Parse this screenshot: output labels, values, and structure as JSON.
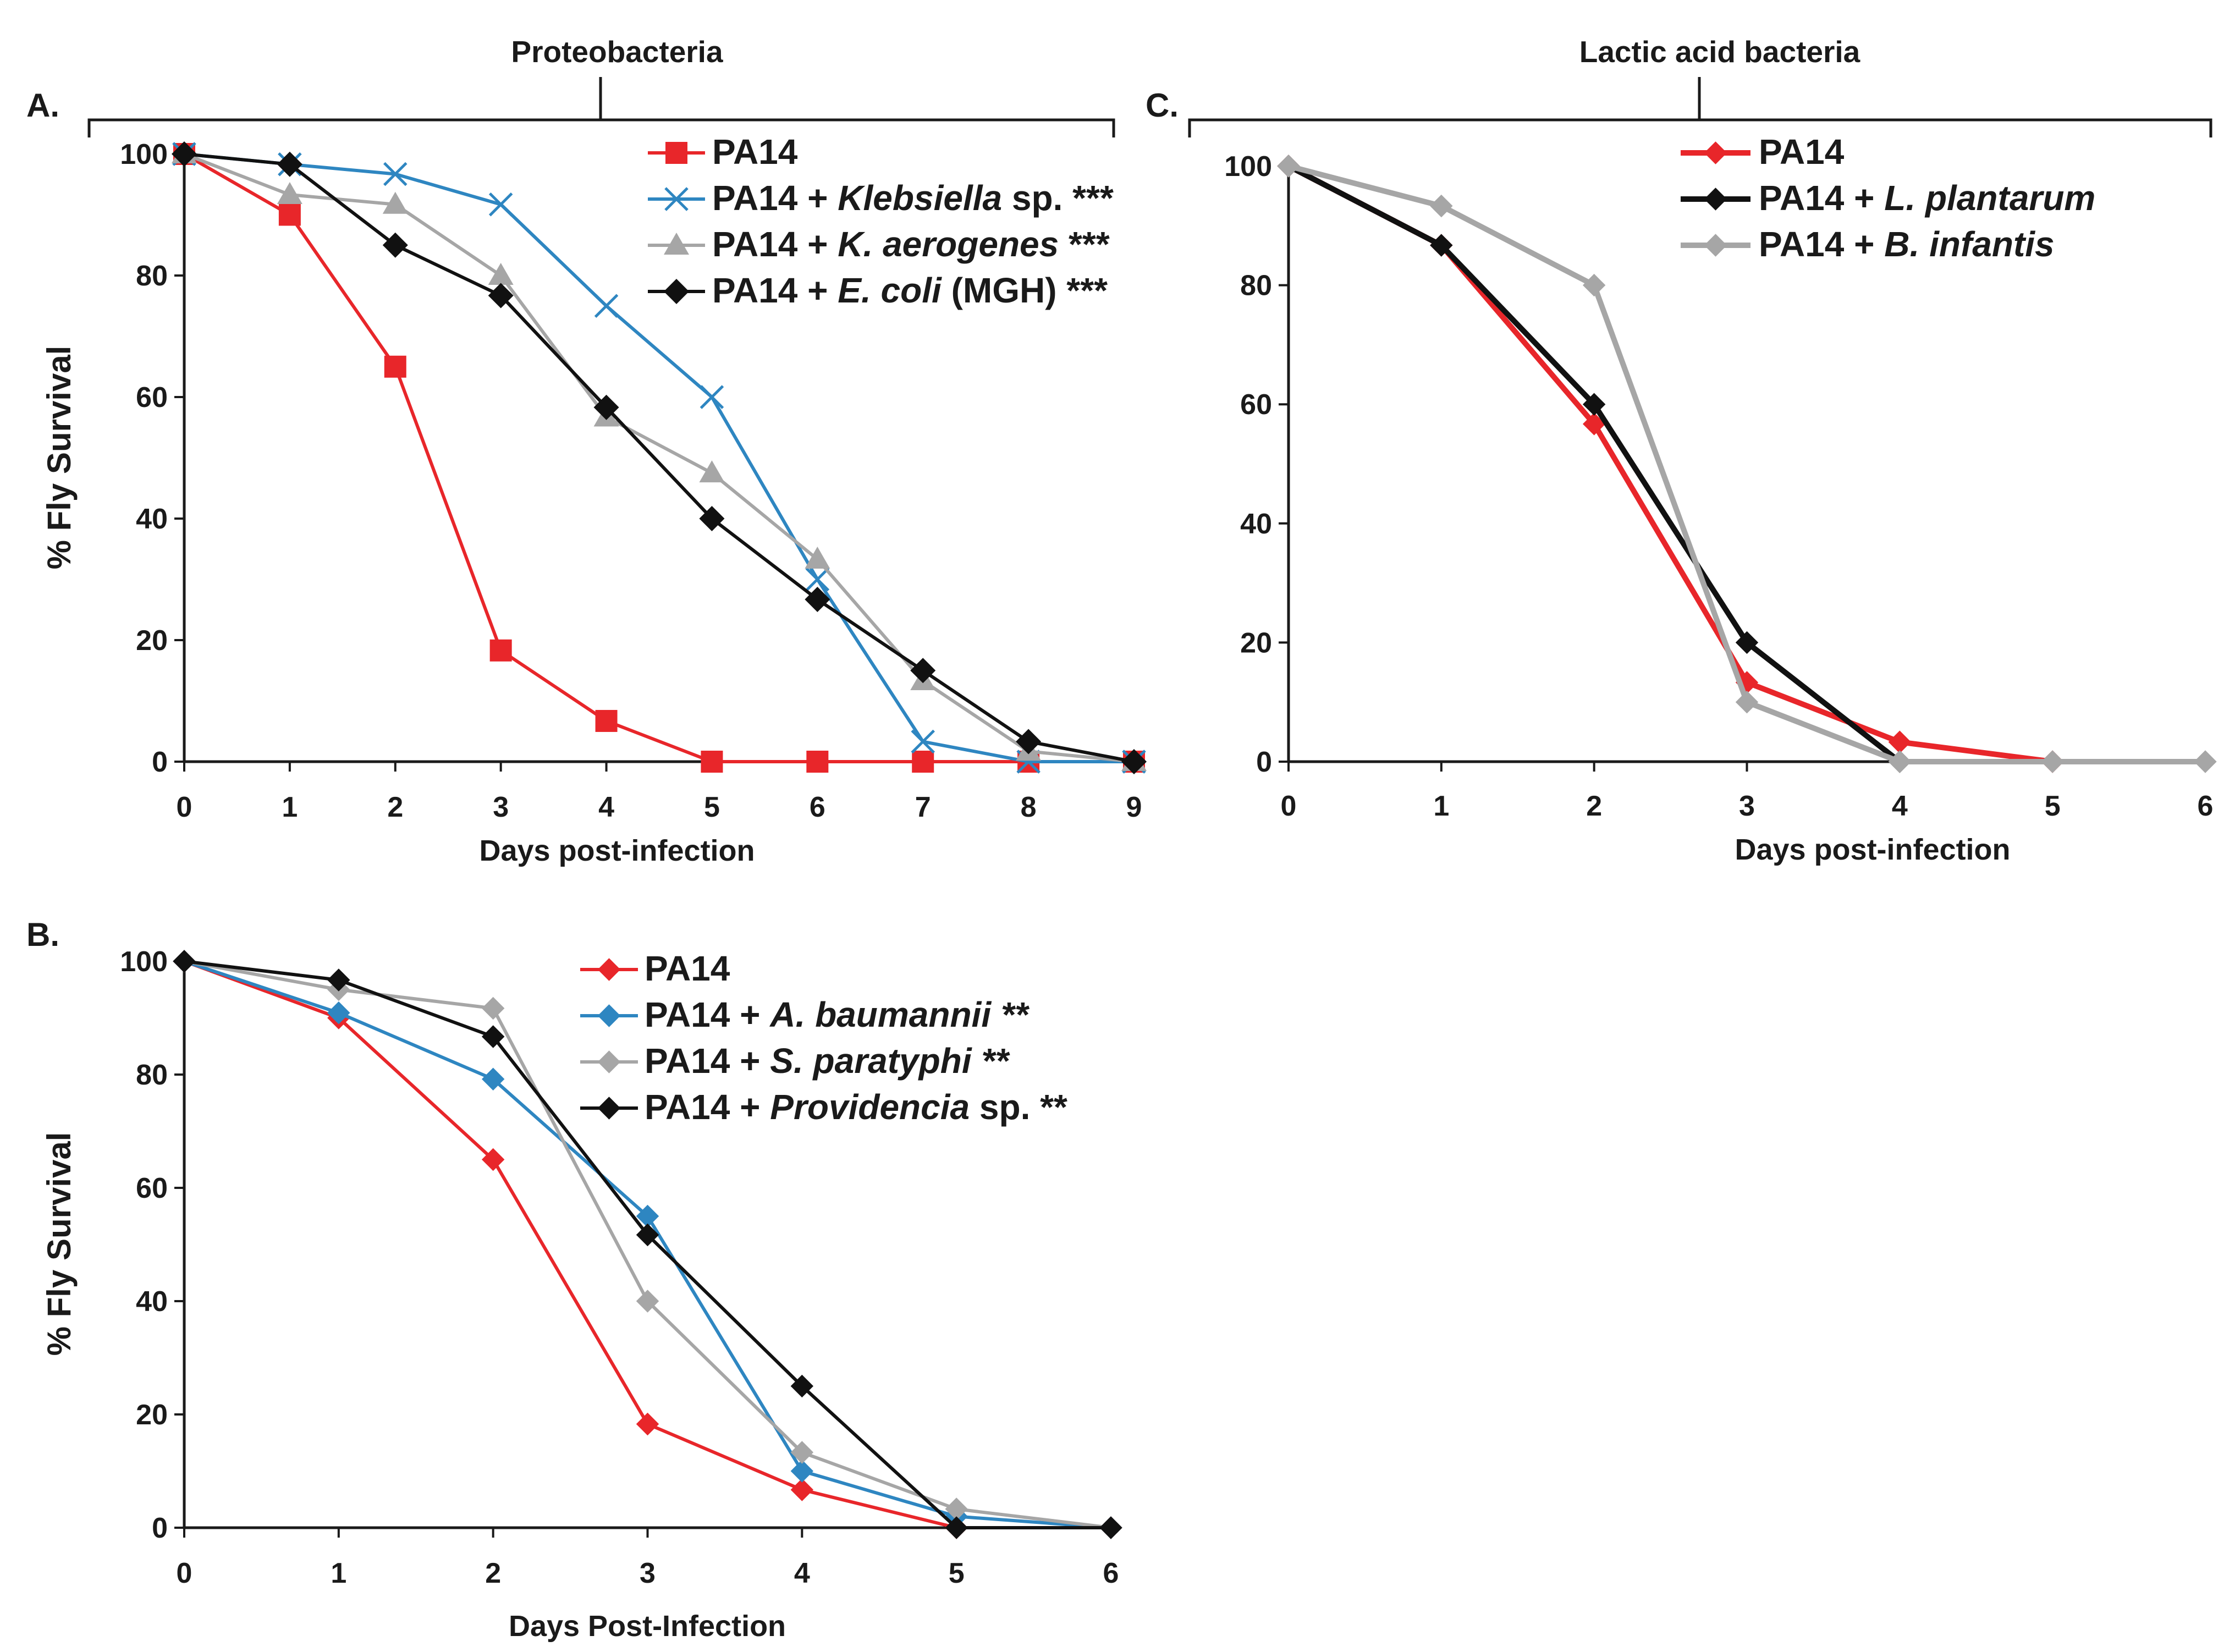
{
  "figure": {
    "groups": [
      {
        "title": "Proteobacteria"
      },
      {
        "title": "Lactic acid bacteria"
      }
    ]
  },
  "chart_data": [
    {
      "id": "A",
      "type": "line",
      "panel_label": "A.",
      "xlabel": "Days post-infection",
      "ylabel": "% Fly Survival",
      "x": [
        0,
        1,
        2,
        3,
        4,
        5,
        6,
        7,
        8,
        9
      ],
      "xlim": [
        0,
        9
      ],
      "ylim": [
        0,
        100
      ],
      "yticks": [
        0,
        20,
        40,
        60,
        80,
        100
      ],
      "grid": false,
      "legend_position": "top-right",
      "series": [
        {
          "name": "PA14",
          "legend": [
            {
              "t": "PA14",
              "i": false
            }
          ],
          "color": "#e8262a",
          "marker": "square",
          "values": [
            100,
            90,
            65,
            18.3,
            6.7,
            0,
            0,
            0,
            0,
            0
          ]
        },
        {
          "name": "PA14 + Klebsiella sp. ***",
          "legend": [
            {
              "t": "PA14 + ",
              "i": false
            },
            {
              "t": "Klebsiella",
              "i": true
            },
            {
              "t": " sp. ***",
              "i": false
            }
          ],
          "color": "#2e86c1",
          "marker": "x",
          "values": [
            100,
            98.3,
            96.7,
            91.7,
            75,
            60,
            30,
            3.3,
            0,
            0
          ]
        },
        {
          "name": "PA14 + K. aerogenes ***",
          "legend": [
            {
              "t": "PA14 + ",
              "i": false
            },
            {
              "t": "K. aerogenes",
              "i": true
            },
            {
              "t": " ***",
              "i": false
            }
          ],
          "color": "#a6a6a6",
          "marker": "triangle",
          "values": [
            100,
            93.3,
            91.7,
            80,
            56.7,
            47.5,
            33.3,
            13.3,
            1.7,
            0
          ]
        },
        {
          "name": "PA14 + E. coli (MGH) ***",
          "legend": [
            {
              "t": "PA14 + ",
              "i": false
            },
            {
              "t": "E. coli",
              "i": true
            },
            {
              "t": " (MGH) ***",
              "i": false
            }
          ],
          "color": "#111111",
          "marker": "diamond",
          "values": [
            100,
            98.3,
            85,
            76.7,
            58.3,
            40,
            26.7,
            15,
            3.3,
            0
          ]
        }
      ]
    },
    {
      "id": "B",
      "type": "line",
      "panel_label": "B.",
      "xlabel": "Days Post-Infection",
      "ylabel": "% Fly Survival",
      "x": [
        0,
        1,
        2,
        3,
        4,
        5,
        6
      ],
      "xlim": [
        0,
        6
      ],
      "ylim": [
        0,
        100
      ],
      "yticks": [
        0,
        20,
        40,
        60,
        80,
        100
      ],
      "grid": false,
      "legend_position": "top-right",
      "series": [
        {
          "name": "PA14",
          "legend": [
            {
              "t": "PA14",
              "i": false
            }
          ],
          "color": "#e8262a",
          "marker": "diamond",
          "values": [
            100,
            90,
            65,
            18.3,
            6.7,
            0,
            0
          ]
        },
        {
          "name": "PA14 + A. baumannii **",
          "legend": [
            {
              "t": "PA14 + ",
              "i": false
            },
            {
              "t": "A. baumannii **",
              "i": true
            }
          ],
          "color": "#2e86c1",
          "marker": "diamond",
          "values": [
            100,
            90.9,
            79.2,
            55,
            10,
            2,
            0
          ]
        },
        {
          "name": "PA14 + S. paratyphi **",
          "legend": [
            {
              "t": "PA14 + ",
              "i": false
            },
            {
              "t": "S. paratyphi **",
              "i": true
            }
          ],
          "color": "#a6a6a6",
          "marker": "diamond",
          "values": [
            100,
            95,
            91.7,
            40,
            13.3,
            3.3,
            0
          ]
        },
        {
          "name": "PA14 + Providencia sp. **",
          "legend": [
            {
              "t": "PA14 + ",
              "i": false
            },
            {
              "t": "Providencia",
              "i": true
            },
            {
              "t": " sp. **",
              "i": false
            }
          ],
          "color": "#111111",
          "marker": "diamond",
          "values": [
            100,
            96.7,
            86.7,
            51.7,
            25,
            0,
            0
          ]
        }
      ]
    },
    {
      "id": "C",
      "type": "line",
      "panel_label": "C.",
      "xlabel": "Days post-infection",
      "ylabel": "",
      "x": [
        0,
        1,
        2,
        3,
        4,
        5,
        6
      ],
      "xlim": [
        0,
        6
      ],
      "ylim": [
        0,
        100
      ],
      "yticks": [
        0,
        20,
        40,
        60,
        80,
        100
      ],
      "grid": false,
      "legend_position": "top-right",
      "series": [
        {
          "name": "PA14",
          "legend": [
            {
              "t": "PA14",
              "i": false
            }
          ],
          "color": "#e8262a",
          "marker": "diamond",
          "values": [
            100,
            86.7,
            56.7,
            13.3,
            3.3,
            0,
            null
          ]
        },
        {
          "name": "PA14 + L. plantarum",
          "legend": [
            {
              "t": "PA14 + ",
              "i": false
            },
            {
              "t": "L. plantarum",
              "i": true
            }
          ],
          "color": "#111111",
          "marker": "diamond",
          "values": [
            100,
            86.7,
            60,
            20,
            0,
            null,
            null
          ]
        },
        {
          "name": "PA14 + B. infantis",
          "legend": [
            {
              "t": "PA14 + ",
              "i": false
            },
            {
              "t": "B. infantis",
              "i": true
            }
          ],
          "color": "#a6a6a6",
          "marker": "diamond",
          "values": [
            100,
            93.3,
            80,
            10,
            0,
            0,
            0
          ]
        }
      ]
    }
  ]
}
